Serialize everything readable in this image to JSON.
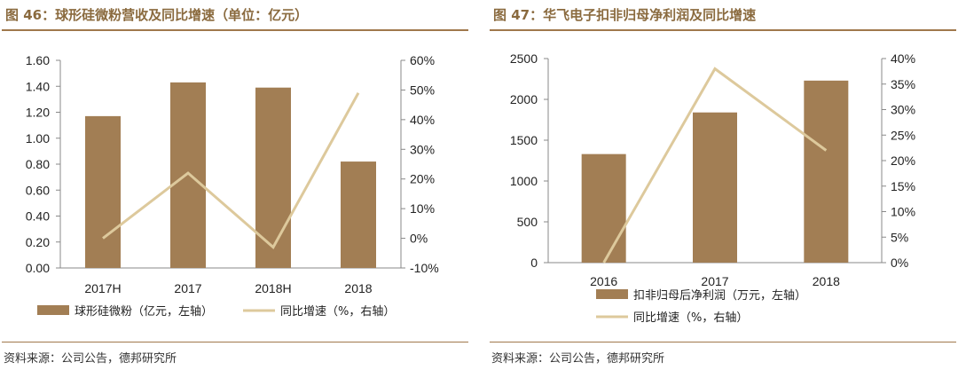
{
  "colors": {
    "bar": "#a27e54",
    "line": "#ddc99c",
    "accent": "#8a6a3e",
    "rule": "#a0784c"
  },
  "chart_data": [
    {
      "type": "bar",
      "title": "图 46：球形硅微粉营收及同比增速（单位：亿元）",
      "categories": [
        "2017H",
        "2017",
        "2018H",
        "2018"
      ],
      "series": [
        {
          "name": "球形硅微粉（亿元，左轴）",
          "type": "bar",
          "axis": "left",
          "values": [
            1.17,
            1.43,
            1.39,
            0.82
          ]
        },
        {
          "name": "同比增速（%，右轴）",
          "type": "line",
          "axis": "right",
          "values": [
            0,
            22,
            -3,
            49
          ]
        }
      ],
      "left_axis": {
        "min": 0,
        "max": 1.6,
        "step": 0.2,
        "ticks": [
          "0.00",
          "0.20",
          "0.40",
          "0.60",
          "0.80",
          "1.00",
          "1.20",
          "1.40",
          "1.60"
        ]
      },
      "right_axis": {
        "min": -10,
        "max": 60,
        "step": 10,
        "ticks": [
          "-10%",
          "0%",
          "10%",
          "20%",
          "30%",
          "40%",
          "50%",
          "60%"
        ]
      },
      "legend_position": "bottom",
      "grid": false,
      "source": "资料来源：公司公告，德邦研究所"
    },
    {
      "type": "bar",
      "title": "图 47：华飞电子扣非归母净利润及同比增速",
      "categories": [
        "2016",
        "2017",
        "2018"
      ],
      "series": [
        {
          "name": "扣非归母后净利润（万元，左轴）",
          "type": "bar",
          "axis": "left",
          "values": [
            1330,
            1840,
            2230
          ]
        },
        {
          "name": "同比增速（%，右轴）",
          "type": "line",
          "axis": "right",
          "values": [
            0,
            38,
            22
          ]
        }
      ],
      "left_axis": {
        "min": 0,
        "max": 2500,
        "step": 500,
        "ticks": [
          "0",
          "500",
          "1000",
          "1500",
          "2000",
          "2500"
        ]
      },
      "right_axis": {
        "min": 0,
        "max": 40,
        "step": 5,
        "ticks": [
          "0%",
          "5%",
          "10%",
          "15%",
          "20%",
          "25%",
          "30%",
          "35%",
          "40%"
        ]
      },
      "legend_position": "bottom",
      "grid": false,
      "source": "资料来源：公司公告，德邦研究所"
    }
  ]
}
